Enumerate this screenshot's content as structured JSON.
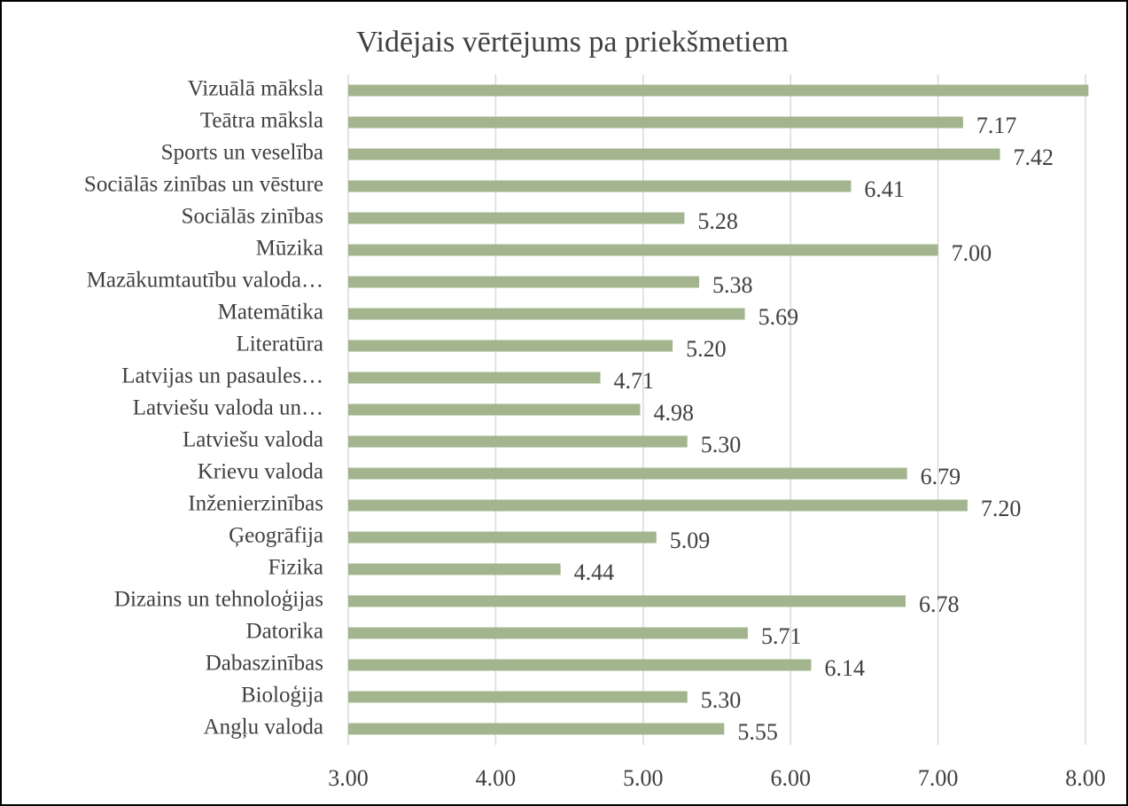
{
  "chart_data": {
    "type": "barh",
    "title": "Vidējais vērtējums pa priekšmetiem",
    "categories": [
      "Vizuālā māksla",
      "Teātra māksla",
      "Sports un veselība",
      "Sociālās zinības un vēsture",
      "Sociālās zinības",
      "Mūzika",
      "Mazākumtautību valoda…",
      "Matemātika",
      "Literatūra",
      "Latvijas un pasaules…",
      "Latviešu valoda un…",
      "Latviešu valoda",
      "Krievu valoda",
      "Inženierzinības",
      "Ģeogrāfija",
      "Fizika",
      "Dizains un tehnoloģijas",
      "Datorika",
      "Dabaszinības",
      "Bioloģija",
      "Angļu valoda"
    ],
    "values": [
      8.02,
      7.17,
      7.42,
      6.41,
      5.28,
      7.0,
      5.38,
      5.69,
      5.2,
      4.71,
      4.98,
      5.3,
      6.79,
      7.2,
      5.09,
      4.44,
      6.78,
      5.71,
      6.14,
      5.3,
      5.55
    ],
    "value_labels": [
      null,
      "7.17",
      "7.42",
      "6.41",
      "5.28",
      "7.00",
      "5.38",
      "5.69",
      "5.20",
      "4.71",
      "4.98",
      "5.30",
      "6.79",
      "7.20",
      "5.09",
      "4.44",
      "6.78",
      "5.71",
      "6.14",
      "5.30",
      "5.55"
    ],
    "color": "#a3b58e",
    "xlim": [
      3,
      8
    ],
    "xticks": [
      {
        "value": 3,
        "label": "3.00"
      },
      {
        "value": 4,
        "label": "4.00"
      },
      {
        "value": 5,
        "label": "5.00"
      },
      {
        "value": 6,
        "label": "6.00"
      },
      {
        "value": 7,
        "label": "7.00"
      },
      {
        "value": 8,
        "label": "8.00"
      }
    ],
    "grid": true
  }
}
